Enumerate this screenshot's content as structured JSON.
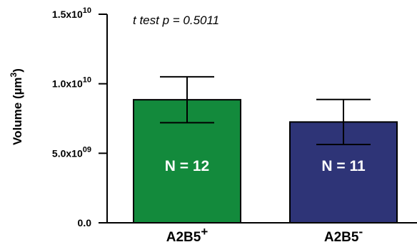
{
  "chart_data": {
    "type": "bar",
    "annotation": "t test p = 0.5011",
    "ylabel": "Volume (µm3)",
    "ylabel_parts": {
      "base": "Volume (µm",
      "sup": "3",
      "tail": ")"
    },
    "ylim": [
      0,
      15000000000
    ],
    "ticks": [
      {
        "value": 0,
        "label": "0.0",
        "exp": ""
      },
      {
        "value": 5000000000,
        "label": "5.0x10",
        "exp": "09"
      },
      {
        "value": 10000000000,
        "label": "1.0x10",
        "exp": "10"
      },
      {
        "value": 15000000000,
        "label": "1.5x10",
        "exp": "10"
      }
    ],
    "categories": [
      {
        "base": "A2B5",
        "sup": "+"
      },
      {
        "base": "A2B5",
        "sup": "-"
      }
    ],
    "values": [
      8850000000,
      7250000000
    ],
    "errors": [
      1650000000,
      1620000000
    ],
    "colors": [
      "#138a3c",
      "#2e3477"
    ],
    "bar_labels": [
      "N = 12",
      "N = 11"
    ],
    "grid": false
  }
}
